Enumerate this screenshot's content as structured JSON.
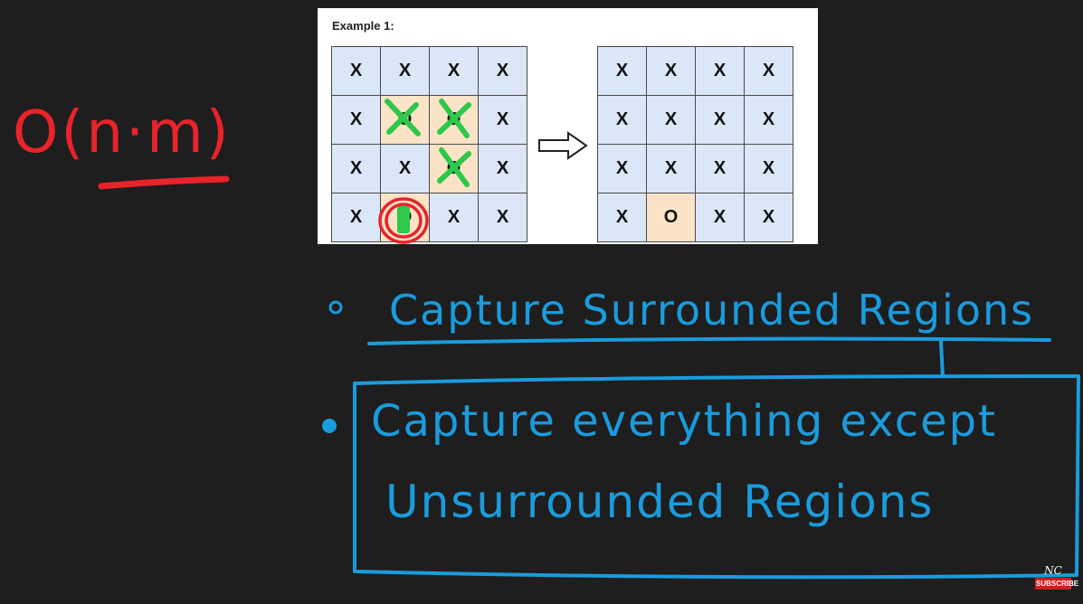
{
  "example": {
    "title": "Example 1:",
    "input_board": [
      [
        "X",
        "X",
        "X",
        "X"
      ],
      [
        "X",
        "O",
        "O",
        "X"
      ],
      [
        "X",
        "X",
        "O",
        "X"
      ],
      [
        "X",
        "O",
        "X",
        "X"
      ]
    ],
    "output_board": [
      [
        "X",
        "X",
        "X",
        "X"
      ],
      [
        "X",
        "X",
        "X",
        "X"
      ],
      [
        "X",
        "X",
        "X",
        "X"
      ],
      [
        "X",
        "O",
        "X",
        "X"
      ]
    ]
  },
  "notes": {
    "complexity": "O(n·m)",
    "bullet1": "Capture Surrounded Regions",
    "bullet2_line1": "Capture everything except",
    "bullet2_line2": "Unsurrounded Regions"
  },
  "logo": {
    "mark": "NC",
    "label": "SUBSCRIBE"
  },
  "colors": {
    "background": "#1e1e1e",
    "cell_x": "#dbe6f8",
    "cell_o": "#fbe3c8",
    "ink_blue": "#1a9bdd",
    "ink_red": "#e8232a",
    "ink_green": "#2ec84a"
  }
}
